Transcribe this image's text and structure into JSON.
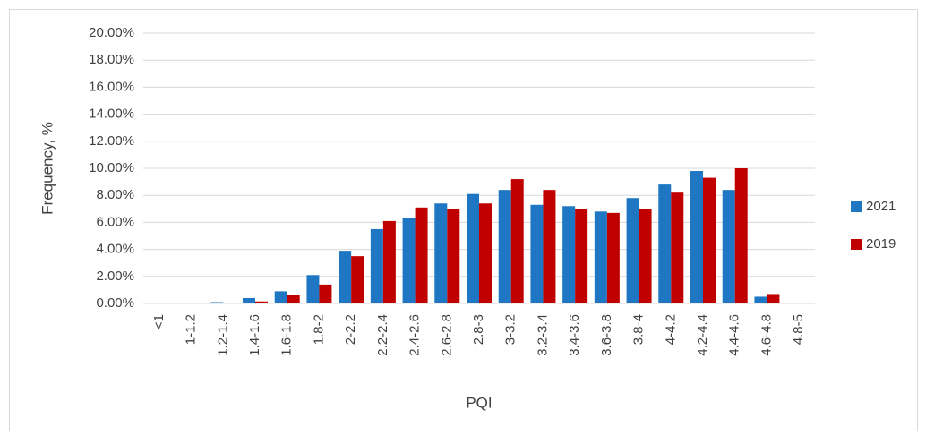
{
  "chart_data": {
    "type": "bar",
    "x_label": "PQI",
    "y_label": "Frequency, %",
    "categories": [
      "<1",
      "1-1.2",
      "1.2-1.4",
      "1.4-1.6",
      "1.6-1.8",
      "1.8-2",
      "2-2.2",
      "2.2-2.4",
      "2.4-2.6",
      "2.6-2.8",
      "2.8-3",
      "3-3.2",
      "3.2-3.4",
      "3.4-3.6",
      "3.6-3.8",
      "3.8-4",
      "4-4.2",
      "4.2-4.4",
      "4.4-4.6",
      "4.6-4.8",
      "4.8-5"
    ],
    "series": [
      {
        "name": "2021",
        "color": "#1f77c4",
        "values": [
          0,
          0,
          0.1,
          0.4,
          0.9,
          2.1,
          3.9,
          5.5,
          6.3,
          7.4,
          8.1,
          8.4,
          7.3,
          7.2,
          6.8,
          7.8,
          8.8,
          9.8,
          8.4,
          0.5,
          0
        ]
      },
      {
        "name": "2019",
        "color": "#c00000",
        "values": [
          0,
          0,
          0.05,
          0.15,
          0.6,
          1.4,
          3.5,
          6.1,
          7.1,
          7.0,
          7.4,
          9.2,
          8.4,
          7.0,
          6.7,
          7.0,
          8.2,
          9.3,
          10.0,
          0.7,
          0
        ]
      }
    ],
    "ylim": [
      0,
      20
    ],
    "yticks": [
      {
        "value": 0,
        "label": "0.00%"
      },
      {
        "value": 2,
        "label": "2.00%"
      },
      {
        "value": 4,
        "label": "4.00%"
      },
      {
        "value": 6,
        "label": "6.00%"
      },
      {
        "value": 8,
        "label": "8.00%"
      },
      {
        "value": 10,
        "label": "10.00%"
      },
      {
        "value": 12,
        "label": "12.00%"
      },
      {
        "value": 14,
        "label": "14.00%"
      },
      {
        "value": 16,
        "label": "16.00%"
      },
      {
        "value": 18,
        "label": "18.00%"
      },
      {
        "value": 20,
        "label": "20.00%"
      }
    ],
    "grid": true,
    "legend": "right"
  }
}
